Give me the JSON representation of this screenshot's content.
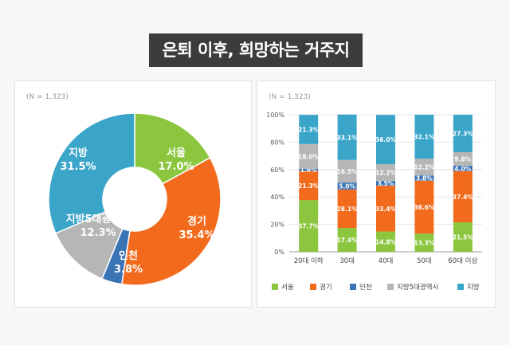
{
  "title": "은퇴 이후, 희망하는 거주지",
  "chart_data": [
    {
      "type": "pie",
      "donut": true,
      "note": "(N = 1,323)",
      "slices": [
        {
          "label": "서울",
          "value": 17.0,
          "text": "17.0%",
          "color": "#8cc63f"
        },
        {
          "label": "경기",
          "value": 35.4,
          "text": "35.4%",
          "color": "#f26b1d"
        },
        {
          "label": "인천",
          "value": 3.8,
          "text": "3.8%",
          "color": "#3a74b5"
        },
        {
          "label": "지방5대광역시",
          "value": 12.3,
          "text": "12.3%",
          "color": "#b6b6b6"
        },
        {
          "label": "지방",
          "value": 31.5,
          "text": "31.5%",
          "color": "#3aa5c9"
        }
      ]
    },
    {
      "type": "bar",
      "stacked": true,
      "note": "(N = 1,323)",
      "categories": [
        "20대 이하",
        "30대",
        "40대",
        "50대",
        "60대 이상"
      ],
      "ylim": [
        0,
        100
      ],
      "yticks": [
        "0%",
        "20%",
        "40%",
        "60%",
        "80%",
        "100%"
      ],
      "legend_position": "bottom",
      "series": [
        {
          "name": "서울",
          "color": "#8cc63f",
          "values": [
            37.7,
            17.4,
            14.8,
            13.3,
            21.5
          ],
          "labels": [
            "37.7%",
            "17.4%",
            "14.8%",
            "13.3%",
            "21.5%"
          ]
        },
        {
          "name": "경기",
          "color": "#f26b1d",
          "values": [
            21.3,
            28.1,
            33.4,
            38.6,
            37.4
          ],
          "labels": [
            "21.3%",
            "28.1%",
            "33.4%",
            "38.6%",
            "37.4%"
          ]
        },
        {
          "name": "인천",
          "color": "#3a74b5",
          "values": [
            1.6,
            5.0,
            3.5,
            3.8,
            4.0
          ],
          "labels": [
            "1.6%",
            "5.0%",
            "3.5%",
            "3.8%",
            "4.0%"
          ]
        },
        {
          "name": "지방5대광역시",
          "color": "#b6b6b6",
          "values": [
            18.0,
            16.5,
            12.2,
            12.2,
            9.8
          ],
          "labels": [
            "18.0%",
            "16.5%",
            "12.2%",
            "12.2%",
            "9.8%"
          ]
        },
        {
          "name": "지방",
          "color": "#3aa5c9",
          "values": [
            21.3,
            33.1,
            36.0,
            32.1,
            27.3
          ],
          "labels": [
            "21.3%",
            "33.1%",
            "36.0%",
            "32.1%",
            "27.3%"
          ]
        }
      ]
    }
  ]
}
